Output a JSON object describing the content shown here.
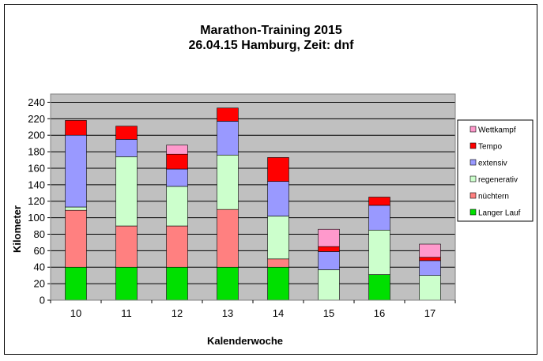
{
  "chart_data": {
    "type": "stacked-bar",
    "title": "Marathon-Training 2015",
    "subtitle": "26.04.15 Hamburg, Zeit: dnf",
    "xlabel": "Kalenderwoche",
    "ylabel": "Kilometer",
    "ylim": [
      0,
      250
    ],
    "yticks": [
      0,
      20,
      40,
      60,
      80,
      100,
      120,
      140,
      160,
      180,
      200,
      220,
      240
    ],
    "grid": true,
    "legend_position": "right",
    "categories": [
      "10",
      "11",
      "12",
      "13",
      "14",
      "15",
      "16",
      "17"
    ],
    "series": [
      {
        "name": "Langer Lauf",
        "color": "#00e000",
        "values": [
          40,
          40,
          40,
          40,
          40,
          0,
          31,
          0
        ]
      },
      {
        "name": "nüchtern",
        "color": "#ff8080",
        "values": [
          69,
          50,
          50,
          70,
          10,
          0,
          0,
          0
        ]
      },
      {
        "name": "regenerativ",
        "color": "#ccffcc",
        "values": [
          4,
          84,
          48,
          66,
          52,
          37,
          54,
          30
        ]
      },
      {
        "name": "extensiv",
        "color": "#9999ff",
        "values": [
          87,
          21,
          21,
          41,
          42,
          22,
          30,
          18
        ]
      },
      {
        "name": "Tempo",
        "color": "#ff0000",
        "values": [
          18,
          16,
          18,
          16,
          29,
          6,
          10,
          4
        ]
      },
      {
        "name": "Wettkampf",
        "color": "#ff99cc",
        "values": [
          0,
          0,
          11,
          0,
          0,
          21,
          0,
          16
        ]
      }
    ]
  }
}
